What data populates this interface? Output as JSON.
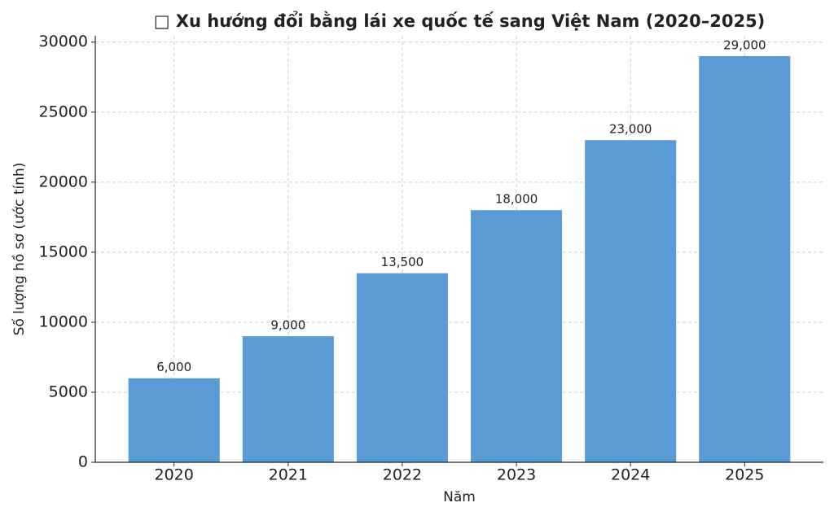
{
  "chart_data": {
    "type": "bar",
    "title": "□ Xu hướng đổi bằng lái xe quốc tế sang Việt Nam (2020–2025)",
    "x_label": "Năm",
    "y_label": "Số lượng hồ sơ (ước tính)",
    "categories": [
      "2020",
      "2021",
      "2022",
      "2023",
      "2024",
      "2025"
    ],
    "values": [
      6000,
      9000,
      13500,
      18000,
      23000,
      29000
    ],
    "value_labels": [
      "6,000",
      "9,000",
      "13,500",
      "18,000",
      "23,000",
      "29,000"
    ],
    "color": "#5b9bd5",
    "ylim": [
      0,
      30450
    ],
    "yticks": [
      0,
      5000,
      10000,
      15000,
      20000,
      25000,
      30000
    ],
    "grid": true
  }
}
